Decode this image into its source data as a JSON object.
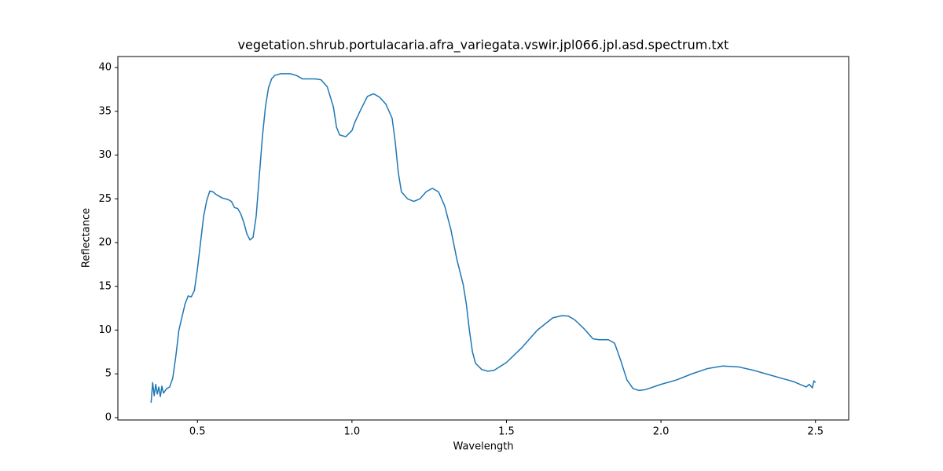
{
  "chart_data": {
    "type": "line",
    "title": "vegetation.shrub.portulacaria.afra_variegata.vswir.jpl066.jpl.asd.spectrum.txt",
    "x_label": "Wavelength",
    "y_label": "Reflectance",
    "x": [
      0.35,
      0.355,
      0.36,
      0.365,
      0.37,
      0.375,
      0.38,
      0.385,
      0.39,
      0.4,
      0.41,
      0.42,
      0.43,
      0.44,
      0.45,
      0.46,
      0.47,
      0.48,
      0.49,
      0.5,
      0.51,
      0.52,
      0.53,
      0.54,
      0.55,
      0.56,
      0.58,
      0.6,
      0.61,
      0.62,
      0.63,
      0.64,
      0.65,
      0.66,
      0.67,
      0.68,
      0.69,
      0.7,
      0.71,
      0.72,
      0.73,
      0.74,
      0.75,
      0.77,
      0.8,
      0.82,
      0.84,
      0.86,
      0.88,
      0.9,
      0.92,
      0.94,
      0.95,
      0.96,
      0.98,
      1.0,
      1.01,
      1.03,
      1.05,
      1.07,
      1.09,
      1.11,
      1.13,
      1.14,
      1.15,
      1.16,
      1.18,
      1.2,
      1.22,
      1.24,
      1.26,
      1.28,
      1.3,
      1.32,
      1.34,
      1.36,
      1.37,
      1.38,
      1.39,
      1.4,
      1.42,
      1.44,
      1.46,
      1.5,
      1.55,
      1.6,
      1.65,
      1.68,
      1.7,
      1.72,
      1.75,
      1.78,
      1.8,
      1.83,
      1.85,
      1.87,
      1.89,
      1.91,
      1.93,
      1.95,
      2.0,
      2.05,
      2.1,
      2.15,
      2.2,
      2.25,
      2.3,
      2.35,
      2.4,
      2.43,
      2.45,
      2.47,
      2.48,
      2.49,
      2.495,
      2.5
    ],
    "series": [
      {
        "name": "Reflectance",
        "color": "#1f77b4",
        "values": [
          1.7,
          4.0,
          2.5,
          3.8,
          2.7,
          3.5,
          2.4,
          3.6,
          2.8,
          3.3,
          3.5,
          4.5,
          7,
          10,
          11.5,
          13,
          13.9,
          13.8,
          14.5,
          17,
          20,
          23,
          24.8,
          25.9,
          25.8,
          25.5,
          25.1,
          24.9,
          24.7,
          24.0,
          23.9,
          23.3,
          22.3,
          21,
          20.3,
          20.6,
          23,
          27.5,
          32,
          35.5,
          37.7,
          38.7,
          39.1,
          39.3,
          39.3,
          39.1,
          38.7,
          38.7,
          38.7,
          38.6,
          37.8,
          35.5,
          33.2,
          32.3,
          32.1,
          32.8,
          33.8,
          35.3,
          36.7,
          37.0,
          36.6,
          35.8,
          34.2,
          31.5,
          28,
          25.8,
          25.0,
          24.7,
          25.0,
          25.8,
          26.2,
          25.8,
          24.2,
          21.5,
          18,
          15.2,
          13,
          10,
          7.5,
          6.2,
          5.5,
          5.3,
          5.4,
          6.3,
          8.0,
          10.0,
          11.4,
          11.65,
          11.6,
          11.2,
          10.2,
          9.0,
          8.9,
          8.9,
          8.5,
          6.5,
          4.3,
          3.3,
          3.1,
          3.2,
          3.8,
          4.3,
          5.0,
          5.6,
          5.9,
          5.8,
          5.4,
          4.9,
          4.4,
          4.1,
          3.8,
          3.5,
          3.8,
          3.4,
          4.2,
          4.0
        ]
      }
    ],
    "xlim": [
      0.2425,
      2.6075
    ],
    "ylim": [
      -0.27,
      41.26
    ],
    "xticks": [
      0.5,
      {
        "value": 1,
        "label": "1.0"
      },
      1.5,
      {
        "value": 2,
        "label": "2.0"
      },
      2.5
    ],
    "yticks": [
      0,
      5,
      10,
      15,
      20,
      25,
      30,
      35,
      40
    ]
  }
}
